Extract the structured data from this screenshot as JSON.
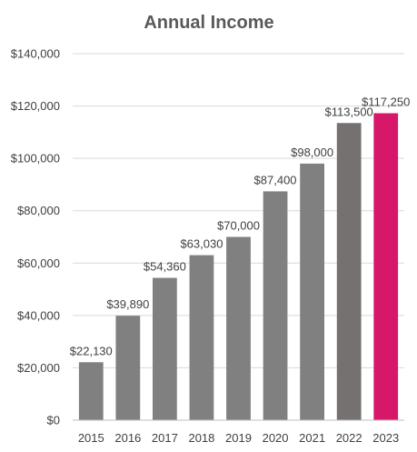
{
  "chart_data": {
    "type": "bar",
    "title": "Annual Income",
    "xlabel": "",
    "ylabel": "",
    "categories": [
      "2015",
      "2016",
      "2017",
      "2018",
      "2019",
      "2020",
      "2021",
      "2022",
      "2023"
    ],
    "values": [
      22130,
      39890,
      54360,
      63030,
      70000,
      87400,
      98000,
      113500,
      117250
    ],
    "data_labels": [
      "$22,130",
      "$39,890",
      "$54,360",
      "$63,030",
      "$70,000",
      "$87,400",
      "$98,000",
      "$113,500",
      "$117,250"
    ],
    "ylim": [
      0,
      140000
    ],
    "y_ticks": [
      0,
      20000,
      40000,
      60000,
      80000,
      100000,
      120000,
      140000
    ],
    "y_tick_labels": [
      "$0",
      "$20,000",
      "$40,000",
      "$60,000",
      "$80,000",
      "$100,000",
      "$120,000",
      "$140,000"
    ],
    "grid": true,
    "legend": "none",
    "bar_colors": [
      "#808080",
      "#808080",
      "#808080",
      "#808080",
      "#808080",
      "#808080",
      "#808080",
      "#757171",
      "#d6176a"
    ]
  }
}
